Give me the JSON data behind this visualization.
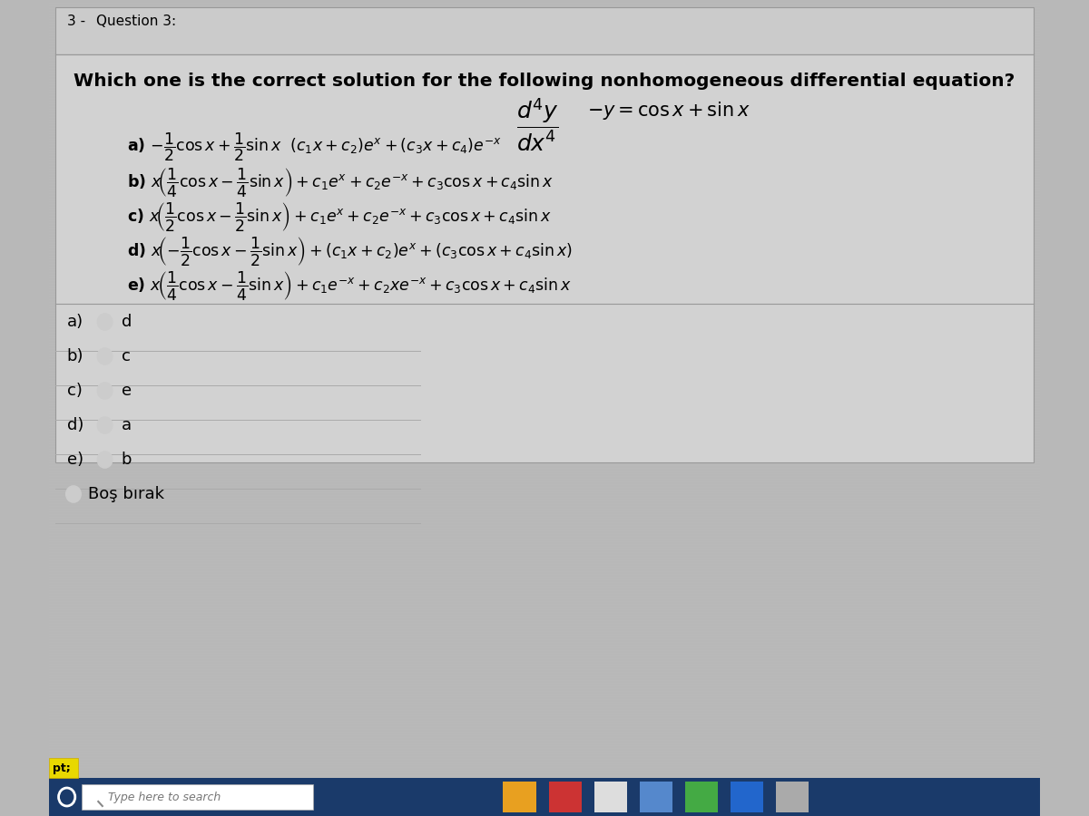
{
  "bg_color": "#b8b8b8",
  "panel_bg": "#d4d4d4",
  "title_line1": "3 -   Question 3:",
  "title_line2": "Which one is the correct solution for the following nonhomogeneous differential equation?",
  "answers": [
    {
      "label": "a)",
      "value": "d"
    },
    {
      "label": "b)",
      "value": "c"
    },
    {
      "label": "c)",
      "value": "e"
    },
    {
      "label": "d)",
      "value": "a"
    },
    {
      "label": "e)",
      "value": "b"
    }
  ],
  "bos_birak": "Boş bırak",
  "pt_label": "pt;",
  "search_label": "Type here to search",
  "taskbar_color": "#1a3a6a",
  "header_bg": "#d0d0d0",
  "content_bg": "#cccccc"
}
